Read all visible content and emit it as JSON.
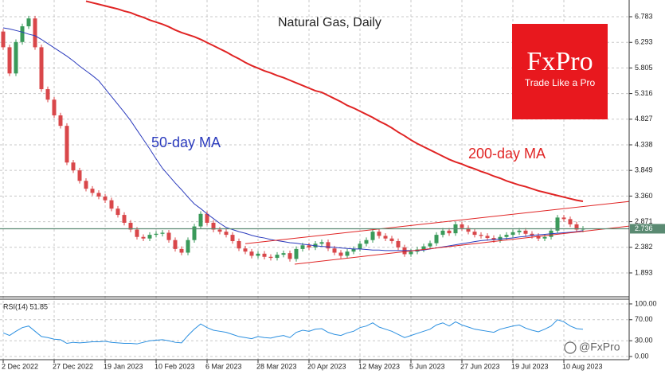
{
  "chart_data": [
    {
      "type": "candlestick",
      "title": "Natural Gas, Daily",
      "categories": [
        "2 Dec 2022",
        null,
        null,
        null,
        null,
        null,
        null,
        null,
        "27 Dec 2022",
        null,
        null,
        null,
        null,
        null,
        null,
        null,
        "19 Jan 2023",
        null,
        null,
        null,
        null,
        null,
        null,
        null,
        "10 Feb 2023",
        null,
        null,
        null,
        null,
        null,
        null,
        null,
        "6 Mar 2023",
        null,
        null,
        null,
        null,
        null,
        null,
        null,
        "28 Mar 2023",
        null,
        null,
        null,
        null,
        null,
        null,
        null,
        "20 Apr 2023",
        null,
        null,
        null,
        null,
        null,
        null,
        null,
        "12 May 2023",
        null,
        null,
        null,
        null,
        null,
        null,
        null,
        "5 Jun 2023",
        null,
        null,
        null,
        null,
        null,
        null,
        null,
        "27 Jun 2023",
        null,
        null,
        null,
        null,
        null,
        null,
        null,
        "19 Jul 2023",
        null,
        null,
        null,
        null,
        null,
        null,
        null,
        "10 Aug 2023",
        null,
        null,
        null
      ],
      "open": [
        6.5,
        6.2,
        5.7,
        6.3,
        6.6,
        6.75,
        6.2,
        5.4,
        5.2,
        4.9,
        4.7,
        4.0,
        3.85,
        3.65,
        3.5,
        3.42,
        3.35,
        3.28,
        3.12,
        3.0,
        2.85,
        2.72,
        2.58,
        2.55,
        2.62,
        2.64,
        2.66,
        2.52,
        2.35,
        2.28,
        2.52,
        2.78,
        3.02,
        2.85,
        2.72,
        2.68,
        2.62,
        2.5,
        2.36,
        2.3,
        2.22,
        2.26,
        2.2,
        2.18,
        2.24,
        2.27,
        2.16,
        2.35,
        2.42,
        2.38,
        2.45,
        2.48,
        2.36,
        2.28,
        2.22,
        2.3,
        2.35,
        2.45,
        2.52,
        2.68,
        2.6,
        2.55,
        2.5,
        2.38,
        2.25,
        2.3,
        2.34,
        2.4,
        2.46,
        2.62,
        2.7,
        2.65,
        2.82,
        2.75,
        2.68,
        2.62,
        2.6,
        2.56,
        2.52,
        2.58,
        2.62,
        2.67,
        2.7,
        2.64,
        2.6,
        2.55,
        2.58,
        2.7,
        2.95,
        2.92,
        2.82,
        2.72
      ],
      "high": [
        6.55,
        6.25,
        6.35,
        6.65,
        6.8,
        6.8,
        6.25,
        5.45,
        5.25,
        4.95,
        4.75,
        4.05,
        3.9,
        3.7,
        3.55,
        3.47,
        3.4,
        3.33,
        3.17,
        3.05,
        2.9,
        2.77,
        2.63,
        2.67,
        2.69,
        2.71,
        2.71,
        2.57,
        2.4,
        2.57,
        2.83,
        3.07,
        3.07,
        2.9,
        2.77,
        2.73,
        2.67,
        2.55,
        2.41,
        2.35,
        2.31,
        2.31,
        2.25,
        2.29,
        2.32,
        2.32,
        2.4,
        2.47,
        2.47,
        2.5,
        2.53,
        2.53,
        2.41,
        2.33,
        2.35,
        2.4,
        2.5,
        2.57,
        2.73,
        2.73,
        2.65,
        2.6,
        2.55,
        2.43,
        2.35,
        2.39,
        2.45,
        2.51,
        2.67,
        2.75,
        2.75,
        2.87,
        2.87,
        2.8,
        2.73,
        2.67,
        2.65,
        2.61,
        2.63,
        2.67,
        2.72,
        2.75,
        2.75,
        2.69,
        2.65,
        2.63,
        2.75,
        3.0,
        3.0,
        2.97,
        2.87,
        2.786
      ],
      "low": [
        6.15,
        5.65,
        5.65,
        6.25,
        6.55,
        6.15,
        5.35,
        5.15,
        4.85,
        4.65,
        3.95,
        3.8,
        3.6,
        3.45,
        3.37,
        3.3,
        3.23,
        3.07,
        2.95,
        2.8,
        2.67,
        2.53,
        2.5,
        2.5,
        2.57,
        2.59,
        2.47,
        2.3,
        2.23,
        2.23,
        2.47,
        2.73,
        2.8,
        2.67,
        2.63,
        2.57,
        2.45,
        2.31,
        2.25,
        2.17,
        2.17,
        2.15,
        2.13,
        2.13,
        2.19,
        2.11,
        2.11,
        2.3,
        2.33,
        2.33,
        2.4,
        2.31,
        2.23,
        2.17,
        2.17,
        2.25,
        2.3,
        2.4,
        2.47,
        2.55,
        2.5,
        2.45,
        2.33,
        2.2,
        2.2,
        2.25,
        2.29,
        2.35,
        2.41,
        2.57,
        2.6,
        2.6,
        2.7,
        2.63,
        2.57,
        2.55,
        2.51,
        2.47,
        2.47,
        2.53,
        2.57,
        2.62,
        2.59,
        2.55,
        2.5,
        2.5,
        2.53,
        2.65,
        2.87,
        2.77,
        2.67,
        2.67
      ],
      "close": [
        6.2,
        5.7,
        6.3,
        6.6,
        6.75,
        6.2,
        5.4,
        5.2,
        4.9,
        4.7,
        4.0,
        3.85,
        3.65,
        3.5,
        3.42,
        3.35,
        3.28,
        3.12,
        3.0,
        2.85,
        2.72,
        2.58,
        2.55,
        2.62,
        2.64,
        2.66,
        2.52,
        2.35,
        2.28,
        2.52,
        2.78,
        3.02,
        2.85,
        2.72,
        2.68,
        2.62,
        2.5,
        2.36,
        2.3,
        2.22,
        2.26,
        2.2,
        2.18,
        2.24,
        2.27,
        2.16,
        2.35,
        2.42,
        2.38,
        2.45,
        2.48,
        2.36,
        2.28,
        2.22,
        2.3,
        2.35,
        2.45,
        2.52,
        2.68,
        2.6,
        2.55,
        2.5,
        2.38,
        2.25,
        2.3,
        2.34,
        2.4,
        2.46,
        2.62,
        2.7,
        2.65,
        2.82,
        2.75,
        2.68,
        2.62,
        2.6,
        2.56,
        2.52,
        2.58,
        2.62,
        2.67,
        2.7,
        2.64,
        2.6,
        2.55,
        2.58,
        2.7,
        2.95,
        2.92,
        2.82,
        2.72,
        2.736
      ],
      "up_color": "#3a9a5a",
      "down_color": "#d9474a",
      "series": [
        {
          "name": "50-day MA",
          "color": "#2b3bbd",
          "values": [
            6.57,
            6.55,
            6.52,
            6.49,
            6.45,
            6.42,
            6.35,
            6.27,
            6.19,
            6.11,
            6.03,
            5.94,
            5.84,
            5.75,
            5.66,
            5.56,
            5.41,
            5.26,
            5.11,
            4.96,
            4.8,
            4.62,
            4.44,
            4.26,
            4.07,
            3.89,
            3.75,
            3.61,
            3.48,
            3.34,
            3.21,
            3.12,
            3.02,
            2.93,
            2.84,
            2.76,
            2.72,
            2.68,
            2.65,
            2.61,
            2.58,
            2.56,
            2.53,
            2.51,
            2.49,
            2.47,
            2.46,
            2.44,
            2.43,
            2.41,
            2.4,
            2.39,
            2.38,
            2.37,
            2.36,
            2.35,
            2.35,
            2.34,
            2.33,
            2.33,
            2.32,
            2.32,
            2.32,
            2.32,
            2.32,
            2.32,
            2.33,
            2.35,
            2.37,
            2.39,
            2.41,
            2.43,
            2.45,
            2.47,
            2.49,
            2.51,
            2.52,
            2.53,
            2.54,
            2.55,
            2.56,
            2.58,
            2.59,
            2.61,
            2.62,
            2.63,
            2.64,
            2.65,
            2.66,
            2.67,
            2.68,
            2.7
          ]
        },
        {
          "name": "200-day MA",
          "color": "#e02424",
          "values": [
            null,
            null,
            null,
            null,
            null,
            null,
            null,
            null,
            null,
            null,
            null,
            null,
            null,
            7.08,
            7.05,
            7.02,
            6.99,
            6.96,
            6.93,
            6.89,
            6.86,
            6.81,
            6.77,
            6.72,
            6.68,
            6.64,
            6.59,
            6.53,
            6.48,
            6.44,
            6.4,
            6.35,
            6.29,
            6.23,
            6.17,
            6.11,
            6.04,
            5.98,
            5.91,
            5.85,
            5.8,
            5.75,
            5.71,
            5.66,
            5.62,
            5.57,
            5.52,
            5.47,
            5.42,
            5.37,
            5.34,
            5.28,
            5.22,
            5.16,
            5.09,
            5.04,
            4.98,
            4.92,
            4.86,
            4.79,
            4.73,
            4.66,
            4.58,
            4.51,
            4.43,
            4.36,
            4.3,
            4.24,
            4.18,
            4.12,
            4.06,
            4.01,
            3.97,
            3.92,
            3.88,
            3.83,
            3.79,
            3.74,
            3.7,
            3.65,
            3.61,
            3.57,
            3.54,
            3.5,
            3.46,
            3.43,
            3.4,
            3.37,
            3.34,
            3.31,
            3.28,
            3.26
          ]
        }
      ],
      "trendlines": [
        {
          "color": "#e02424",
          "points": [
            [
              38,
              2.45
            ],
            [
              98.5,
              3.26
            ]
          ]
        },
        {
          "color": "#e02424",
          "points": [
            [
              45.75,
              2.06
            ],
            [
              98.5,
              2.79
            ]
          ]
        }
      ],
      "last_price": 2.736,
      "last_price_color": "#5a8a72",
      "ylim": [
        1.437,
        7.102
      ],
      "yticks": [
        6.783,
        6.293,
        5.805,
        5.316,
        4.827,
        4.338,
        3.849,
        {
          "value": 3.36,
          "label": "3.360"
        },
        2.871,
        2.382,
        1.893
      ],
      "grid": true
    },
    {
      "type": "line",
      "title": "RSI(14) 51.85",
      "color": "#2a8fe0",
      "values": [
        45,
        40,
        48,
        55,
        58,
        48,
        38,
        36,
        33,
        32,
        25,
        27,
        26,
        27,
        28,
        28,
        29,
        27,
        26,
        25,
        25,
        24,
        27,
        30,
        31,
        32,
        30,
        27,
        26,
        40,
        52,
        62,
        55,
        50,
        48,
        46,
        42,
        38,
        36,
        34,
        38,
        36,
        35,
        38,
        40,
        36,
        46,
        50,
        48,
        52,
        53,
        46,
        42,
        40,
        45,
        48,
        55,
        58,
        64,
        56,
        52,
        48,
        42,
        36,
        40,
        44,
        48,
        52,
        60,
        64,
        58,
        66,
        60,
        56,
        52,
        50,
        48,
        46,
        52,
        55,
        58,
        60,
        54,
        50,
        47,
        52,
        58,
        70,
        66,
        58,
        53,
        51.85
      ],
      "ylim": [
        -6,
        109
      ],
      "yticks": [
        {
          "value": 100,
          "label": "100.00"
        },
        {
          "value": 70,
          "label": "70.00"
        },
        {
          "value": 30,
          "label": "30.00"
        },
        {
          "value": 0,
          "label": "0.00"
        }
      ],
      "grid": true
    }
  ],
  "logo": {
    "brand": "FxPro",
    "tagline": "Trade Like a Pro"
  },
  "watermark": "@FxPro"
}
